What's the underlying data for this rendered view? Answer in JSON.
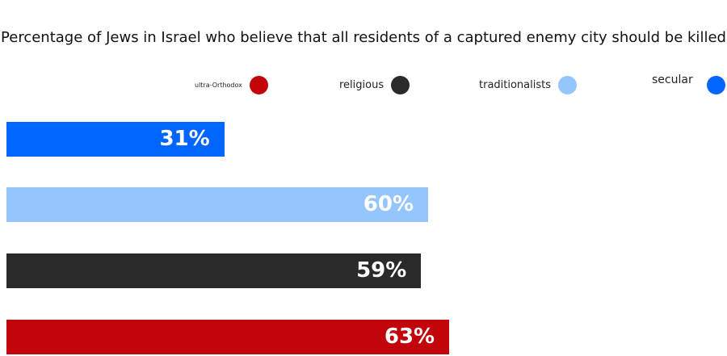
{
  "chart_data": {
    "type": "bar",
    "orientation": "horizontal",
    "title": "Percentage of Jews in Israel who believe that all residents of a captured enemy city should be killed",
    "xlabel": "",
    "ylabel": "",
    "xlim": [
      0,
      100
    ],
    "legend_placement": "top",
    "grid": false,
    "categories": [
      "secular",
      "traditionalists",
      "religious",
      "ultra-Orthodox"
    ],
    "values": [
      31,
      60,
      59,
      63
    ],
    "value_labels": [
      "31%",
      "60%",
      "59%",
      "63%"
    ],
    "colors": [
      "#0066ff",
      "#94c5fc",
      "#2a2a2a",
      "#c1050b"
    ],
    "legend": [
      {
        "label": "ultra-Orthodox",
        "color": "#c1050b"
      },
      {
        "label": "religious",
        "color": "#2a2a2a"
      },
      {
        "label": "traditionalists",
        "color": "#94c5fc"
      },
      {
        "label": "secular",
        "color": "#0066ff"
      }
    ]
  }
}
